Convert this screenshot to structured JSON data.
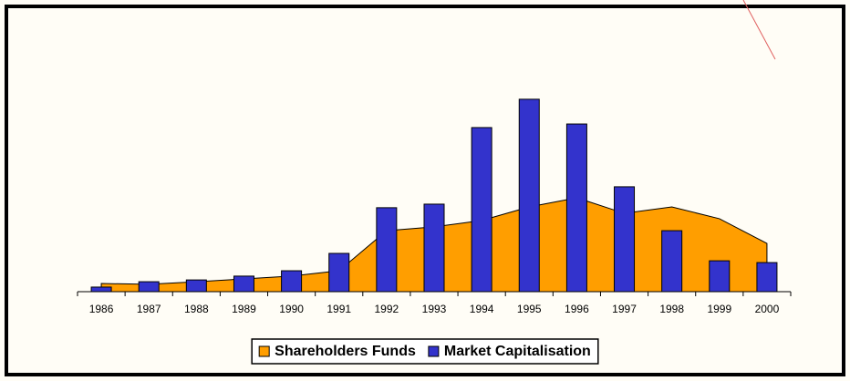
{
  "chart_data": {
    "type": "bar-area",
    "categories": [
      "1986",
      "1987",
      "1988",
      "1989",
      "1990",
      "1991",
      "1992",
      "1993",
      "1994",
      "1995",
      "1996",
      "1997",
      "1998",
      "1999",
      "2000"
    ],
    "series": [
      {
        "name": "Shareholders Funds",
        "kind": "area",
        "color": "#ff9e00",
        "values": [
          3.2,
          2.9,
          3.9,
          5,
          6.1,
          8.2,
          23.9,
          25.4,
          27.9,
          33.2,
          36.8,
          30.7,
          33.2,
          28.6,
          18.9
        ]
      },
      {
        "name": "Market Capitalisation",
        "kind": "bar",
        "color": "#3333cc",
        "values": [
          1.8,
          3.9,
          4.6,
          6.1,
          8.2,
          15,
          32.9,
          34.3,
          64.3,
          75.4,
          65.7,
          41.1,
          23.9,
          12.1,
          11.4
        ]
      }
    ],
    "ylim": [
      0,
      100
    ],
    "legend": "bottom"
  }
}
